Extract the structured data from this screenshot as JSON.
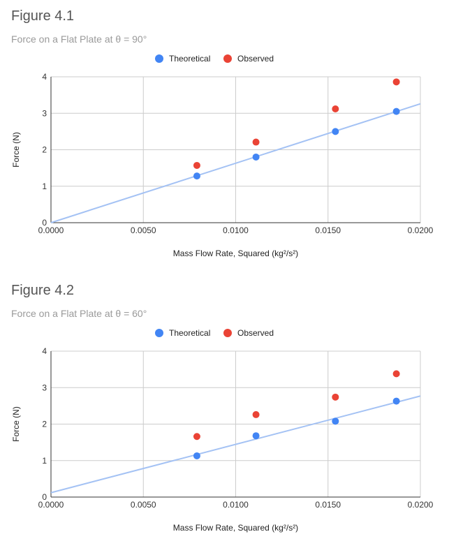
{
  "colors": {
    "theoretical": "#4285F4",
    "observed": "#EA4335",
    "trendline": "#A4C2F4",
    "grid": "#cccccc"
  },
  "chart_data": [
    {
      "type": "scatter",
      "figure_label": "Figure 4.1",
      "title": "Force on a Flat Plate at θ = 90°",
      "xlabel": "Mass Flow Rate, Squared (kg²/s²)",
      "ylabel": "Force (N)",
      "xlim": [
        0,
        0.02
      ],
      "ylim": [
        0,
        4
      ],
      "x_ticks": [
        "0.0000",
        "0.0050",
        "0.0100",
        "0.0150",
        "0.0200"
      ],
      "y_ticks": [
        "0",
        "1",
        "2",
        "3",
        "4"
      ],
      "legend": "top-center",
      "series": [
        {
          "name": "Theoretical",
          "color": "#4285F4",
          "x": [
            0.0079,
            0.0111,
            0.0154,
            0.0187
          ],
          "y": [
            1.28,
            1.8,
            2.5,
            3.05
          ]
        },
        {
          "name": "Observed",
          "color": "#EA4335",
          "x": [
            0.0079,
            0.0111,
            0.0154,
            0.0187
          ],
          "y": [
            1.57,
            2.21,
            3.12,
            3.86
          ]
        }
      ],
      "trendline": {
        "series": "Theoretical",
        "x": [
          0,
          0.02
        ],
        "y": [
          0.0,
          3.26
        ]
      }
    },
    {
      "type": "scatter",
      "figure_label": "Figure 4.2",
      "title": "Force on a Flat Plate at θ = 60°",
      "xlabel": "Mass Flow Rate, Squared (kg²/s²)",
      "ylabel": "Force (N)",
      "xlim": [
        0,
        0.02
      ],
      "ylim": [
        0,
        4
      ],
      "x_ticks": [
        "0.0000",
        "0.0050",
        "0.0100",
        "0.0150",
        "0.0200"
      ],
      "y_ticks": [
        "0",
        "1",
        "2",
        "3",
        "4"
      ],
      "legend": "top-center",
      "series": [
        {
          "name": "Theoretical",
          "color": "#4285F4",
          "x": [
            0.0079,
            0.0111,
            0.0154,
            0.0187
          ],
          "y": [
            1.13,
            1.68,
            2.08,
            2.63
          ]
        },
        {
          "name": "Observed",
          "color": "#EA4335",
          "x": [
            0.0079,
            0.0111,
            0.0154,
            0.0187
          ],
          "y": [
            1.66,
            2.26,
            2.74,
            3.38
          ]
        }
      ],
      "trendline": {
        "series": "Theoretical",
        "x": [
          0,
          0.02
        ],
        "y": [
          0.12,
          2.77
        ]
      }
    }
  ]
}
